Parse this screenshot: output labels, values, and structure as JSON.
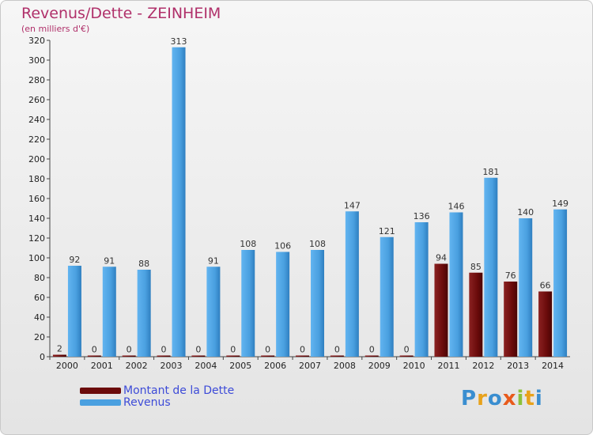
{
  "title": "Revenus/Dette - ZEINHEIM",
  "subtitle": "(en milliers d'€)",
  "logo": {
    "letters": [
      "P",
      "r",
      "o",
      "x",
      "i",
      "t",
      "i"
    ],
    "colors": [
      "#3a8ed0",
      "#e8a21b",
      "#3a8ed0",
      "#e85a1b",
      "#8bc13a",
      "#e8a21b",
      "#3a8ed0"
    ]
  },
  "colors": {
    "dette": "#6b0b0b",
    "revenus": "#4aa0e0",
    "title": "#b0306a"
  },
  "chart_data": {
    "type": "bar",
    "categories": [
      "2000",
      "2001",
      "2002",
      "2003",
      "2004",
      "2005",
      "2006",
      "2007",
      "2008",
      "2009",
      "2010",
      "2011",
      "2012",
      "2013",
      "2014"
    ],
    "series": [
      {
        "name": "Montant de la Dette",
        "values": [
          2,
          0,
          0,
          0,
          0,
          0,
          0,
          0,
          0,
          0,
          0,
          94,
          85,
          76,
          66
        ]
      },
      {
        "name": "Revenus",
        "values": [
          92,
          91,
          88,
          313,
          91,
          108,
          106,
          108,
          147,
          121,
          136,
          146,
          181,
          140,
          149
        ]
      }
    ],
    "ylim": [
      0,
      320
    ],
    "yticks": [
      0,
      20,
      40,
      60,
      80,
      100,
      120,
      140,
      160,
      180,
      200,
      220,
      240,
      260,
      280,
      300,
      320
    ],
    "grid": false,
    "legend": "bottom-left"
  }
}
